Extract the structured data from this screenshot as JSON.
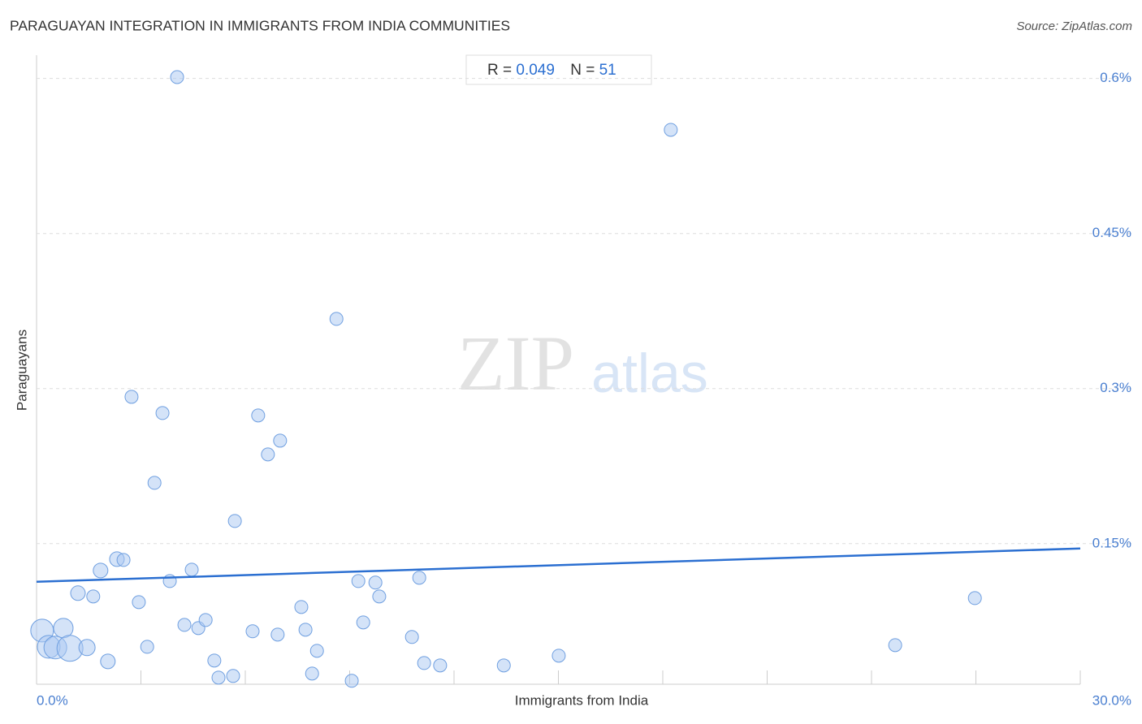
{
  "chart_data": {
    "type": "scatter",
    "title": "PARAGUAYAN INTEGRATION IN IMMIGRANTS FROM INDIA COMMUNITIES",
    "source": "Source: ZipAtlas.com",
    "x_label": "Immigrants from India",
    "y_label": "Paraguayans",
    "watermark_zip": "ZIP",
    "watermark_atlas": "atlas",
    "stats": [
      {
        "label": "R =",
        "value": 0.049
      },
      {
        "label": "N =",
        "value": 51
      }
    ],
    "xlim": [
      0,
      30
    ],
    "ylim": [
      0.014,
      0.617
    ],
    "xticks": [
      {
        "value": 0,
        "label": "0.0%"
      },
      {
        "value": 30,
        "label": "30.0%"
      }
    ],
    "xtick_marks": [
      3,
      6,
      9,
      12,
      15,
      18,
      21,
      24,
      27
    ],
    "yticks": [
      {
        "value": 0.15,
        "label": "0.15%"
      },
      {
        "value": 0.3,
        "label": "0.3%"
      },
      {
        "value": 0.45,
        "label": "0.45%"
      },
      {
        "value": 0.6,
        "label": "0.6%"
      }
    ],
    "grid": true,
    "color": "#a9c8f1",
    "trend_color": "#2b6fd1",
    "trend": {
      "x": [
        0,
        30
      ],
      "y": [
        0.1131,
        0.1453
      ]
    },
    "x": [
      0.16,
      0.35,
      0.54,
      0.77,
      0.96,
      1.19,
      1.45,
      1.63,
      1.84,
      2.05,
      2.31,
      2.5,
      2.73,
      2.94,
      3.18,
      3.39,
      3.62,
      3.83,
      4.04,
      4.25,
      4.46,
      4.65,
      4.86,
      5.11,
      5.23,
      5.65,
      5.7,
      6.21,
      6.37,
      6.65,
      6.93,
      7.0,
      7.61,
      7.73,
      7.92,
      8.06,
      8.62,
      9.06,
      9.25,
      9.39,
      9.74,
      9.85,
      10.79,
      11.0,
      11.14,
      11.6,
      13.43,
      15.01,
      18.23,
      24.68,
      26.97
    ],
    "y": [
      0.0659,
      0.0502,
      0.0495,
      0.0683,
      0.0487,
      0.1021,
      0.0495,
      0.0989,
      0.124,
      0.0361,
      0.135,
      0.1342,
      0.292,
      0.0934,
      0.0502,
      0.2088,
      0.2763,
      0.1138,
      0.6013,
      0.0714,
      0.1248,
      0.0683,
      0.0761,
      0.0369,
      0.0204,
      0.022,
      0.1719,
      0.0652,
      0.274,
      0.2363,
      0.062,
      0.2496,
      0.0887,
      0.0667,
      0.0243,
      0.0463,
      0.3674,
      0.0173,
      0.1138,
      0.0738,
      0.1123,
      0.0989,
      0.0597,
      0.117,
      0.0345,
      0.0322,
      0.0322,
      0.0416,
      0.5503,
      0.0518,
      0.0973
    ],
    "sizes": [
      14,
      14,
      14,
      12,
      16,
      9,
      10,
      8,
      9,
      9,
      9,
      8,
      8,
      8,
      8,
      8,
      8,
      8,
      8,
      8,
      8,
      8,
      8,
      8,
      8,
      8,
      8,
      8,
      8,
      8,
      8,
      8,
      8,
      8,
      8,
      8,
      8,
      8,
      8,
      8,
      8,
      8,
      8,
      8,
      8,
      8,
      8,
      8,
      8,
      8,
      8
    ]
  }
}
